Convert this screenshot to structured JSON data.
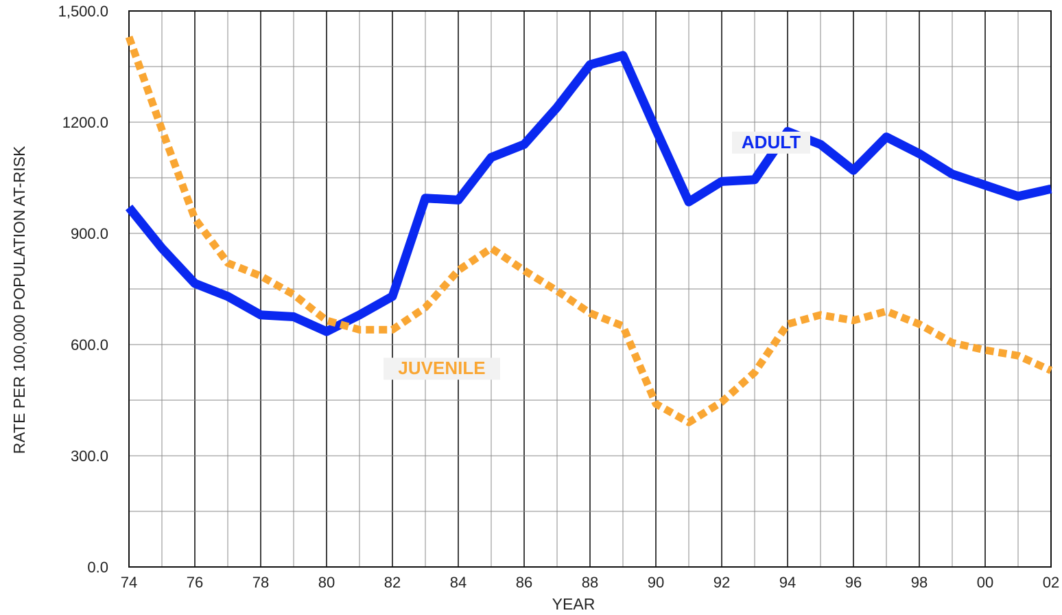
{
  "chart_data": {
    "type": "line",
    "title": "",
    "xlabel": "YEAR",
    "ylabel": "RATE PER 100,000 POPULATION AT-RISK",
    "x": [
      1974,
      1975,
      1976,
      1977,
      1978,
      1979,
      1980,
      1981,
      1982,
      1983,
      1984,
      1985,
      1986,
      1987,
      1988,
      1989,
      1990,
      1991,
      1992,
      1993,
      1994,
      1995,
      1996,
      1997,
      1998,
      1999,
      2000,
      2001,
      2002
    ],
    "x_tick_labels": [
      "74",
      "76",
      "78",
      "80",
      "82",
      "84",
      "86",
      "88",
      "90",
      "92",
      "94",
      "96",
      "98",
      "00",
      "02"
    ],
    "y_tick_labels": [
      "0.0",
      "300.0",
      "600.0",
      "900.0",
      "1200.0",
      "1,500.0"
    ],
    "y_ticks": [
      0,
      300,
      600,
      900,
      1200,
      1500
    ],
    "xlim": [
      1974,
      2002
    ],
    "ylim": [
      0,
      1500
    ],
    "grid": true,
    "series": [
      {
        "name": "ADULT",
        "color": "#0a28f0",
        "style": "solid",
        "values": [
          970,
          860,
          765,
          730,
          680,
          675,
          635,
          680,
          730,
          995,
          990,
          1105,
          1140,
          1240,
          1355,
          1380,
          1180,
          985,
          1040,
          1045,
          1175,
          1140,
          1070,
          1160,
          1115,
          1060,
          1030,
          1000,
          1020
        ]
      },
      {
        "name": "JUVENILE",
        "color": "#f9a633",
        "style": "dotted",
        "values": [
          1430,
          1180,
          940,
          820,
          785,
          735,
          665,
          640,
          640,
          700,
          800,
          860,
          800,
          745,
          685,
          650,
          440,
          390,
          445,
          525,
          655,
          680,
          665,
          690,
          655,
          605,
          585,
          570,
          530
        ]
      }
    ]
  }
}
